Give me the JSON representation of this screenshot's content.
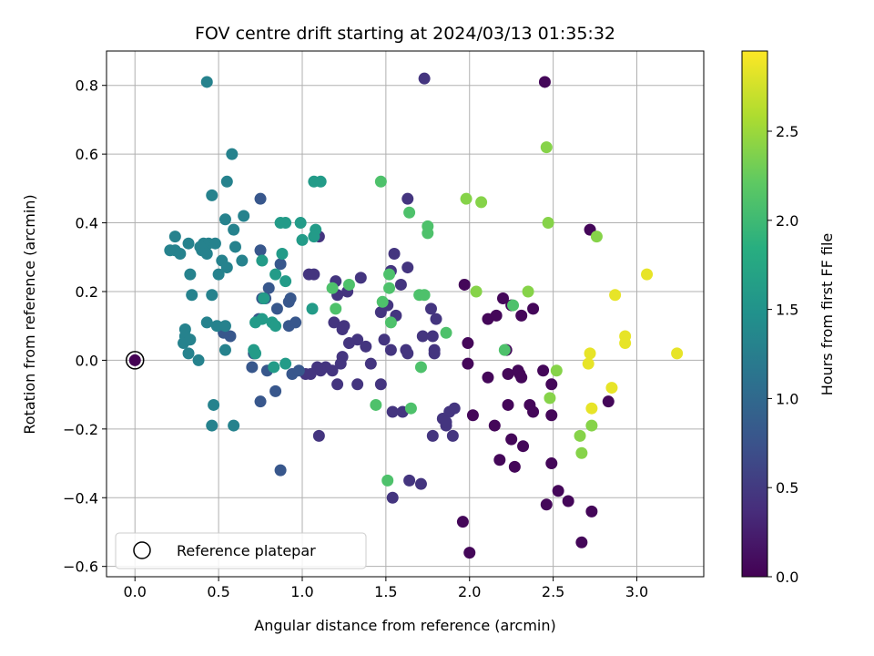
{
  "chart_data": {
    "type": "scatter",
    "title": "FOV centre drift starting at 2024/03/13 01:35:32",
    "xlabel": "Angular distance from reference (arcmin)",
    "ylabel": "Rotation from reference (arcmin)",
    "xlim": [
      -0.17,
      3.4
    ],
    "ylim": [
      -0.63,
      0.9
    ],
    "xticks": [
      0.0,
      0.5,
      1.0,
      1.5,
      2.0,
      2.5,
      3.0
    ],
    "xtick_labels": [
      "0.0",
      "0.5",
      "1.0",
      "1.5",
      "2.0",
      "2.5",
      "3.0"
    ],
    "yticks": [
      -0.6,
      -0.4,
      -0.2,
      0.0,
      0.2,
      0.4,
      0.6,
      0.8
    ],
    "ytick_labels": [
      "−0.6",
      "−0.4",
      "−0.2",
      "0.0",
      "0.2",
      "0.4",
      "0.6",
      "0.8"
    ],
    "grid": true,
    "legend": {
      "position": "lower-left",
      "entries": [
        "Reference platepar"
      ]
    },
    "colorbar": {
      "label": "Hours from first FF file",
      "colormap": "viridis",
      "range": [
        0,
        2.95
      ],
      "ticks": [
        0.0,
        0.5,
        1.0,
        1.5,
        2.0,
        2.5
      ],
      "tick_labels": [
        "0.0",
        "0.5",
        "1.0",
        "1.5",
        "2.0",
        "2.5"
      ]
    },
    "reference_point": {
      "name": "Reference platepar",
      "x": 0.0,
      "y": 0.0
    },
    "series": [
      {
        "points": [
          [
            2.45,
            0.81,
            0.05
          ],
          [
            2.46,
            -0.42,
            0.05
          ],
          [
            2.49,
            -0.3,
            0.05
          ],
          [
            2.53,
            -0.38,
            0.05
          ],
          [
            2.59,
            -0.41,
            0.05
          ],
          [
            2.67,
            -0.53,
            0.05
          ],
          [
            2.73,
            -0.44,
            0.05
          ],
          [
            2.72,
            0.38,
            0.05
          ],
          [
            2.83,
            -0.12,
            0.05
          ],
          [
            2.44,
            -0.03,
            0.05
          ],
          [
            2.3,
            -0.04,
            0.05
          ],
          [
            2.25,
            -0.23,
            0.05
          ],
          [
            2.27,
            -0.31,
            0.05
          ],
          [
            2.32,
            -0.25,
            0.05
          ],
          [
            2.18,
            -0.29,
            0.05
          ],
          [
            2.22,
            0.03,
            0.05
          ],
          [
            2.2,
            0.18,
            0.05
          ],
          [
            2.11,
            0.12,
            0.05
          ],
          [
            2.16,
            0.13,
            0.05
          ],
          [
            2.25,
            0.16,
            0.05
          ],
          [
            2.31,
            0.13,
            0.05
          ],
          [
            2.38,
            0.15,
            0.05
          ],
          [
            2.11,
            -0.05,
            0.05
          ],
          [
            2.23,
            -0.04,
            0.05
          ],
          [
            2.29,
            -0.03,
            0.05
          ],
          [
            2.23,
            -0.13,
            0.05
          ],
          [
            2.36,
            -0.13,
            0.05
          ],
          [
            2.38,
            -0.15,
            0.05
          ],
          [
            2.49,
            -0.07,
            0.05
          ],
          [
            2.49,
            -0.16,
            0.05
          ],
          [
            2.31,
            -0.05,
            0.05
          ],
          [
            2.15,
            -0.19,
            0.05
          ],
          [
            2.0,
            -0.56,
            0.05
          ],
          [
            1.96,
            -0.47,
            0.05
          ],
          [
            2.02,
            -0.16,
            0.05
          ],
          [
            1.99,
            0.05,
            0.05
          ],
          [
            1.99,
            -0.01,
            0.05
          ],
          [
            1.97,
            0.22,
            0.05
          ]
        ]
      },
      {
        "points": [
          [
            1.73,
            0.82,
            0.45
          ],
          [
            1.63,
            0.47,
            0.45
          ],
          [
            1.53,
            0.26,
            0.45
          ],
          [
            1.55,
            0.31,
            0.45
          ],
          [
            1.59,
            0.22,
            0.45
          ],
          [
            1.63,
            0.27,
            0.45
          ],
          [
            1.51,
            0.16,
            0.45
          ],
          [
            1.56,
            0.13,
            0.45
          ],
          [
            1.47,
            0.14,
            0.45
          ],
          [
            1.53,
            0.03,
            0.45
          ],
          [
            1.62,
            0.03,
            0.45
          ],
          [
            1.63,
            0.02,
            0.45
          ],
          [
            1.54,
            -0.15,
            0.45
          ],
          [
            1.6,
            -0.15,
            0.45
          ],
          [
            1.54,
            -0.4,
            0.45
          ],
          [
            1.64,
            -0.35,
            0.45
          ],
          [
            1.71,
            -0.36,
            0.45
          ],
          [
            1.77,
            0.15,
            0.45
          ],
          [
            1.8,
            0.12,
            0.45
          ],
          [
            1.72,
            0.07,
            0.45
          ],
          [
            1.78,
            0.07,
            0.45
          ],
          [
            1.79,
            0.03,
            0.45
          ],
          [
            1.79,
            0.02,
            0.45
          ],
          [
            1.78,
            -0.22,
            0.45
          ],
          [
            1.84,
            -0.17,
            0.45
          ],
          [
            1.86,
            -0.19,
            0.45
          ],
          [
            1.88,
            -0.15,
            0.45
          ],
          [
            1.9,
            -0.22,
            0.45
          ],
          [
            1.91,
            -0.14,
            0.45
          ],
          [
            1.86,
            -0.18,
            0.45
          ],
          [
            1.49,
            0.06,
            0.45
          ],
          [
            1.47,
            -0.07,
            0.45
          ],
          [
            1.41,
            -0.01,
            0.45
          ],
          [
            1.38,
            0.04,
            0.45
          ],
          [
            1.33,
            0.06,
            0.45
          ],
          [
            1.35,
            0.24,
            0.45
          ],
          [
            1.27,
            0.2,
            0.45
          ],
          [
            1.2,
            0.23,
            0.45
          ],
          [
            1.21,
            0.19,
            0.45
          ],
          [
            1.19,
            0.11,
            0.45
          ],
          [
            1.24,
            0.09,
            0.45
          ],
          [
            1.25,
            0.1,
            0.45
          ],
          [
            1.24,
            0.01,
            0.45
          ],
          [
            1.23,
            -0.01,
            0.45
          ],
          [
            1.28,
            0.05,
            0.45
          ],
          [
            1.33,
            -0.07,
            0.45
          ],
          [
            1.21,
            -0.07,
            0.45
          ],
          [
            1.18,
            -0.03,
            0.45
          ],
          [
            1.14,
            -0.02,
            0.45
          ],
          [
            1.11,
            -0.03,
            0.45
          ],
          [
            1.09,
            -0.02,
            0.45
          ],
          [
            1.1,
            -0.22,
            0.45
          ],
          [
            1.04,
            0.25,
            0.45
          ],
          [
            1.07,
            0.25,
            0.45
          ],
          [
            1.1,
            0.36,
            0.45
          ],
          [
            1.02,
            -0.04,
            0.45
          ],
          [
            1.05,
            -0.04,
            0.45
          ]
        ]
      },
      {
        "points": [
          [
            0.87,
            0.28,
            0.8
          ],
          [
            0.87,
            -0.32,
            0.8
          ],
          [
            0.92,
            0.17,
            0.8
          ],
          [
            0.93,
            0.18,
            0.8
          ],
          [
            0.92,
            0.1,
            0.8
          ],
          [
            0.96,
            0.11,
            0.8
          ],
          [
            0.94,
            -0.04,
            0.8
          ],
          [
            0.98,
            -0.03,
            0.8
          ],
          [
            0.85,
            0.15,
            0.8
          ],
          [
            0.8,
            0.21,
            0.8
          ],
          [
            0.79,
            -0.03,
            0.8
          ],
          [
            0.84,
            -0.09,
            0.8
          ],
          [
            0.75,
            0.47,
            0.8
          ],
          [
            0.75,
            0.32,
            0.8
          ],
          [
            0.76,
            0.18,
            0.8
          ],
          [
            0.78,
            0.18,
            0.8
          ],
          [
            0.74,
            0.12,
            0.8
          ],
          [
            0.71,
            0.02,
            0.8
          ],
          [
            0.7,
            -0.02,
            0.8
          ],
          [
            0.75,
            -0.12,
            0.8
          ],
          [
            0.57,
            0.07,
            0.8
          ],
          [
            0.53,
            0.08,
            0.8
          ]
        ]
      },
      {
        "points": [
          [
            0.43,
            0.81,
            1.3
          ],
          [
            0.58,
            0.6,
            1.3
          ],
          [
            0.55,
            0.52,
            1.3
          ],
          [
            0.46,
            0.48,
            1.3
          ],
          [
            0.54,
            0.41,
            1.3
          ],
          [
            0.59,
            0.38,
            1.3
          ],
          [
            0.65,
            0.42,
            1.3
          ],
          [
            0.6,
            0.33,
            1.3
          ],
          [
            0.64,
            0.29,
            1.3
          ],
          [
            0.52,
            0.29,
            1.3
          ],
          [
            0.55,
            0.27,
            1.3
          ],
          [
            0.5,
            0.25,
            1.3
          ],
          [
            0.44,
            0.34,
            1.3
          ],
          [
            0.48,
            0.34,
            1.3
          ],
          [
            0.41,
            0.34,
            1.3
          ],
          [
            0.39,
            0.33,
            1.3
          ],
          [
            0.4,
            0.32,
            1.3
          ],
          [
            0.43,
            0.31,
            1.3
          ],
          [
            0.24,
            0.36,
            1.3
          ],
          [
            0.21,
            0.32,
            1.3
          ],
          [
            0.24,
            0.32,
            1.3
          ],
          [
            0.27,
            0.31,
            1.3
          ],
          [
            0.32,
            0.34,
            1.3
          ],
          [
            0.33,
            0.25,
            1.3
          ],
          [
            0.34,
            0.19,
            1.3
          ],
          [
            0.46,
            0.19,
            1.3
          ],
          [
            0.43,
            0.11,
            1.3
          ],
          [
            0.49,
            0.1,
            1.3
          ],
          [
            0.54,
            0.1,
            1.3
          ],
          [
            0.3,
            0.09,
            1.3
          ],
          [
            0.3,
            0.07,
            1.3
          ],
          [
            0.29,
            0.05,
            1.3
          ],
          [
            0.33,
            0.06,
            1.3
          ],
          [
            0.32,
            0.02,
            1.3
          ],
          [
            0.38,
            0.0,
            1.3
          ],
          [
            0.54,
            0.03,
            1.3
          ],
          [
            0.47,
            -0.13,
            1.3
          ],
          [
            0.46,
            -0.19,
            1.3
          ],
          [
            0.59,
            -0.19,
            1.3
          ]
        ]
      },
      {
        "points": [
          [
            0.72,
            0.11,
            1.6
          ],
          [
            0.76,
            0.12,
            1.6
          ],
          [
            0.71,
            0.03,
            1.6
          ],
          [
            0.72,
            0.02,
            1.6
          ],
          [
            0.76,
            0.29,
            1.6
          ],
          [
            0.77,
            0.18,
            1.6
          ],
          [
            0.83,
            -0.02,
            1.6
          ],
          [
            0.82,
            0.11,
            1.6
          ],
          [
            0.84,
            0.1,
            1.6
          ],
          [
            0.84,
            0.25,
            1.6
          ],
          [
            0.87,
            0.4,
            1.6
          ],
          [
            0.88,
            0.31,
            1.6
          ],
          [
            0.9,
            0.23,
            1.6
          ],
          [
            0.9,
            0.4,
            1.6
          ],
          [
            0.99,
            0.4,
            1.6
          ],
          [
            0.9,
            -0.01,
            1.6
          ],
          [
            1.07,
            0.52,
            1.6
          ],
          [
            1.11,
            0.52,
            1.6
          ],
          [
            1.08,
            0.38,
            1.6
          ],
          [
            1.07,
            0.36,
            1.6
          ],
          [
            1.0,
            0.35,
            1.6
          ],
          [
            1.06,
            0.15,
            1.6
          ]
        ]
      },
      {
        "points": [
          [
            1.47,
            0.52,
            2.1
          ],
          [
            1.64,
            0.43,
            2.1
          ],
          [
            1.75,
            0.39,
            2.1
          ],
          [
            1.75,
            0.37,
            2.1
          ],
          [
            1.7,
            0.19,
            2.1
          ],
          [
            1.73,
            0.19,
            2.1
          ],
          [
            1.52,
            0.25,
            2.1
          ],
          [
            1.52,
            0.21,
            2.1
          ],
          [
            1.48,
            0.17,
            2.1
          ],
          [
            1.53,
            0.11,
            2.1
          ],
          [
            1.71,
            -0.02,
            2.1
          ],
          [
            1.65,
            -0.14,
            2.1
          ],
          [
            1.44,
            -0.13,
            2.1
          ],
          [
            1.51,
            -0.35,
            2.1
          ],
          [
            1.18,
            0.21,
            2.1
          ],
          [
            1.2,
            0.15,
            2.1
          ],
          [
            1.28,
            0.22,
            2.1
          ],
          [
            1.86,
            0.08,
            2.1
          ],
          [
            2.21,
            0.03,
            2.1
          ],
          [
            2.26,
            0.16,
            2.1
          ]
        ]
      },
      {
        "points": [
          [
            1.98,
            0.47,
            2.4
          ],
          [
            2.07,
            0.46,
            2.4
          ],
          [
            2.04,
            0.2,
            2.4
          ],
          [
            2.35,
            0.2,
            2.4
          ],
          [
            2.46,
            0.62,
            2.4
          ],
          [
            2.47,
            0.4,
            2.4
          ],
          [
            2.76,
            0.36,
            2.4
          ],
          [
            2.52,
            -0.03,
            2.4
          ],
          [
            2.48,
            -0.11,
            2.4
          ],
          [
            2.66,
            -0.22,
            2.4
          ],
          [
            2.67,
            -0.27,
            2.4
          ],
          [
            2.73,
            -0.19,
            2.4
          ]
        ]
      },
      {
        "points": [
          [
            3.06,
            0.25,
            2.85
          ],
          [
            2.87,
            0.19,
            2.85
          ],
          [
            2.93,
            0.07,
            2.85
          ],
          [
            2.93,
            0.05,
            2.85
          ],
          [
            2.72,
            0.02,
            2.85
          ],
          [
            2.71,
            -0.01,
            2.85
          ],
          [
            2.73,
            -0.14,
            2.85
          ],
          [
            2.85,
            -0.08,
            2.85
          ],
          [
            3.24,
            0.02,
            2.85
          ]
        ]
      }
    ]
  }
}
